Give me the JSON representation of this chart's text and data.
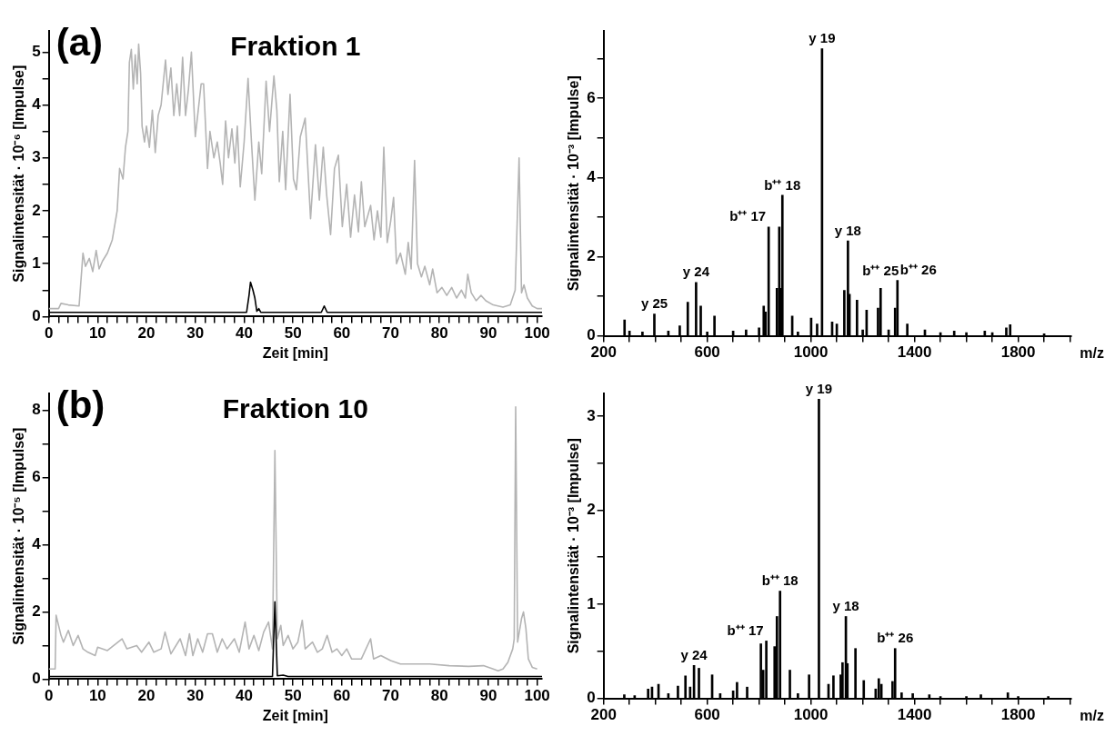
{
  "chart_data": [
    {
      "type": "line",
      "title": "Fraktion 1",
      "annotations": [
        "(a)"
      ],
      "xlabel": "Zeit [min]",
      "ylabel": "Signalintensität · 10⁻⁶ [Impulse]",
      "xlim": [
        0,
        101
      ],
      "ylim": [
        0,
        5.4
      ],
      "xticks": [
        0,
        {
          "value": 2,
          "label": null
        },
        {
          "value": 4,
          "label": null
        },
        {
          "value": 6,
          "label": null
        },
        {
          "value": 8,
          "label": null
        },
        10,
        {
          "value": 12,
          "label": null
        },
        {
          "value": 14,
          "label": null
        },
        {
          "value": 16,
          "label": null
        },
        {
          "value": 18,
          "label": null
        },
        20,
        {
          "value": 22,
          "label": null
        },
        {
          "value": 24,
          "label": null
        },
        {
          "value": 26,
          "label": null
        },
        {
          "value": 28,
          "label": null
        },
        30,
        {
          "value": 32,
          "label": null
        },
        {
          "value": 34,
          "label": null
        },
        {
          "value": 36,
          "label": null
        },
        {
          "value": 38,
          "label": null
        },
        40,
        {
          "value": 42,
          "label": null
        },
        {
          "value": 44,
          "label": null
        },
        {
          "value": 46,
          "label": null
        },
        {
          "value": 48,
          "label": null
        },
        50,
        {
          "value": 52,
          "label": null
        },
        {
          "value": 54,
          "label": null
        },
        {
          "value": 56,
          "label": null
        },
        {
          "value": 58,
          "label": null
        },
        60,
        {
          "value": 62,
          "label": null
        },
        {
          "value": 64,
          "label": null
        },
        {
          "value": 66,
          "label": null
        },
        {
          "value": 68,
          "label": null
        },
        70,
        {
          "value": 72,
          "label": null
        },
        {
          "value": 74,
          "label": null
        },
        {
          "value": 76,
          "label": null
        },
        {
          "value": 78,
          "label": null
        },
        80,
        {
          "value": 82,
          "label": null
        },
        {
          "value": 84,
          "label": null
        },
        {
          "value": 86,
          "label": null
        },
        {
          "value": 88,
          "label": null
        },
        90,
        {
          "value": 92,
          "label": null
        },
        {
          "value": 94,
          "label": null
        },
        {
          "value": 96,
          "label": null
        },
        {
          "value": 98,
          "label": null
        },
        100
      ],
      "yticks": [
        0,
        {
          "value": 0.5,
          "label": null
        },
        1,
        {
          "value": 1.5,
          "label": null
        },
        2,
        {
          "value": 2.5,
          "label": null
        },
        3,
        {
          "value": 3.5,
          "label": null
        },
        4,
        {
          "value": 4.5,
          "label": null
        },
        5
      ],
      "series": [
        {
          "color": "#b4b4b4",
          "x": [
            0,
            2,
            2.5,
            4,
            6.2,
            7,
            7.5,
            8.3,
            9,
            9.7,
            10.3,
            11,
            12,
            13,
            14,
            14.5,
            15.2,
            15.7,
            16.2,
            16.5,
            16.9,
            17.3,
            17.7,
            18.1,
            18.4,
            18.8,
            19.1,
            19.6,
            20,
            20.6,
            21.2,
            21.8,
            22.4,
            23,
            23.9,
            24.4,
            25,
            25.6,
            26.2,
            26.8,
            27.4,
            28,
            28.6,
            29.2,
            30,
            30.6,
            31.2,
            31.7,
            32.5,
            33,
            33.8,
            34.5,
            35.1,
            35.6,
            36.2,
            36.8,
            37.5,
            38.1,
            38.6,
            39.2,
            40,
            40.8,
            41.5,
            42.2,
            43,
            43.6,
            44.5,
            45.2,
            46.1,
            46.7,
            47.2,
            47.9,
            48.5,
            49.4,
            50.1,
            50.7,
            51.5,
            52.5,
            53.6,
            54.6,
            55.4,
            56.2,
            56.9,
            57.7,
            58.5,
            59.3,
            60.1,
            61,
            61.8,
            62.6,
            63.4,
            64,
            64.7,
            65.9,
            66.6,
            67.3,
            68,
            68.6,
            69.3,
            70,
            70.6,
            71.2,
            72,
            73,
            73.6,
            74.2,
            74.9,
            75.5,
            76.3,
            77,
            78,
            78.6,
            79.5,
            80.5,
            81.5,
            82.5,
            83.5,
            84.5,
            85.3,
            85.8,
            86.5,
            87.5,
            88.5,
            89.5,
            91,
            93,
            94.5,
            95.5,
            96.3,
            96.8,
            97.3,
            98,
            99,
            100,
            101
          ],
          "values": [
            0.15,
            0.15,
            0.25,
            0.22,
            0.2,
            1.2,
            0.95,
            1.1,
            0.85,
            1.25,
            0.9,
            1.05,
            1.2,
            1.45,
            2.0,
            2.8,
            2.6,
            3.2,
            3.5,
            4.8,
            5.05,
            4.3,
            4.95,
            4.4,
            5.15,
            4.6,
            3.6,
            3.3,
            3.6,
            3.2,
            3.9,
            3.1,
            3.8,
            4.0,
            4.85,
            4.2,
            4.7,
            3.8,
            4.4,
            3.8,
            4.9,
            3.8,
            4.3,
            5.0,
            3.4,
            3.9,
            4.4,
            4.4,
            2.8,
            3.5,
            3.0,
            3.3,
            2.9,
            2.5,
            3.7,
            3.0,
            3.55,
            2.9,
            3.6,
            2.45,
            3.3,
            4.5,
            3.3,
            2.2,
            3.3,
            2.7,
            4.45,
            3.5,
            4.55,
            3.9,
            2.55,
            3.5,
            2.4,
            4.2,
            2.6,
            2.4,
            3.4,
            3.75,
            1.85,
            3.25,
            2.2,
            3.2,
            2.3,
            1.55,
            2.8,
            3.05,
            1.7,
            2.5,
            1.5,
            2.3,
            1.6,
            2.55,
            1.7,
            2.1,
            1.45,
            2.0,
            1.5,
            3.2,
            1.4,
            1.8,
            2.25,
            1.0,
            1.2,
            0.8,
            1.4,
            0.9,
            2.95,
            1.0,
            0.75,
            0.95,
            0.6,
            0.9,
            0.45,
            0.55,
            0.4,
            0.55,
            0.35,
            0.5,
            0.35,
            0.8,
            0.45,
            0.3,
            0.4,
            0.3,
            0.22,
            0.18,
            0.22,
            0.5,
            3.0,
            0.45,
            0.6,
            0.35,
            0.2,
            0.15,
            0.15
          ]
        },
        {
          "color": "#000000",
          "x": [
            0,
            40.5,
            41,
            41.3,
            41.8,
            42.2,
            42.6,
            43,
            43.4,
            55.8,
            56.4,
            57,
            101
          ],
          "values": [
            0.08,
            0.08,
            0.4,
            0.65,
            0.5,
            0.35,
            0.1,
            0.15,
            0.08,
            0.08,
            0.2,
            0.08,
            0.08
          ]
        }
      ]
    },
    {
      "type": "bar",
      "xlabel": "m/z",
      "ylabel": "Signalintensität · 10⁻³ [Impulse]",
      "xlim": [
        200,
        2005
      ],
      "ylim": [
        0,
        7.7
      ],
      "xticks": [
        200,
        {
          "value": 300,
          "label": null
        },
        {
          "value": 400,
          "label": null
        },
        {
          "value": 500,
          "label": null
        },
        600,
        {
          "value": 700,
          "label": null
        },
        {
          "value": 800,
          "label": null
        },
        {
          "value": 900,
          "label": null
        },
        1000,
        {
          "value": 1100,
          "label": null
        },
        {
          "value": 1200,
          "label": null
        },
        {
          "value": 1300,
          "label": null
        },
        1400,
        {
          "value": 1500,
          "label": null
        },
        {
          "value": 1600,
          "label": null
        },
        {
          "value": 1700,
          "label": null
        },
        1800,
        {
          "value": 1900,
          "label": null
        },
        {
          "value": 2000,
          "label": null
        }
      ],
      "yticks": [
        0,
        {
          "value": 1,
          "label": null
        },
        2,
        {
          "value": 3,
          "label": null
        },
        4,
        {
          "value": 5,
          "label": null
        },
        6,
        {
          "value": 7,
          "label": null
        }
      ],
      "series": [
        {
          "color": "#000000",
          "x": [
            281,
            300,
            350,
            396,
            450,
            494,
            525,
            557,
            575,
            600,
            628,
            700,
            750,
            800,
            818,
            825,
            837,
            869,
            878,
            884,
            890,
            928,
            950,
            1001,
            1024,
            1043,
            1082,
            1100,
            1129,
            1143,
            1149,
            1178,
            1200,
            1215,
            1259,
            1269,
            1300,
            1325,
            1334,
            1372,
            1440,
            1500,
            1553,
            1600,
            1671,
            1700,
            1754,
            1769,
            1900
          ],
          "values": [
            0.4,
            0.12,
            0.1,
            0.55,
            0.12,
            0.25,
            0.85,
            1.35,
            0.75,
            0.1,
            0.5,
            0.12,
            0.15,
            0.2,
            0.75,
            0.6,
            2.75,
            1.2,
            2.75,
            1.2,
            3.55,
            0.5,
            0.1,
            0.45,
            0.3,
            7.25,
            0.35,
            0.3,
            1.15,
            2.4,
            1.05,
            0.9,
            0.15,
            0.65,
            0.7,
            1.2,
            0.15,
            0.7,
            1.4,
            0.3,
            0.15,
            0.08,
            0.12,
            0.08,
            0.12,
            0.08,
            0.2,
            0.28,
            0.05
          ]
        }
      ],
      "annotations": [
        {
          "text": "y 25",
          "x": 396,
          "y": 0.55
        },
        {
          "text": "y 24",
          "x": 557,
          "y": 1.35
        },
        {
          "text": "b⁺⁺ 17",
          "x": 837,
          "y": 2.75
        },
        {
          "text": "b⁺⁺ 18",
          "x": 890,
          "y": 3.55
        },
        {
          "text": "y 19",
          "x": 1043,
          "y": 7.25
        },
        {
          "text": "y 18",
          "x": 1143,
          "y": 2.4
        },
        {
          "text": "b⁺⁺ 25",
          "x": 1269,
          "y": 1.2
        },
        {
          "text": "b⁺⁺ 26",
          "x": 1334,
          "y": 1.4
        }
      ]
    },
    {
      "type": "line",
      "title": "Fraktion 10",
      "annotations": [
        "(b)"
      ],
      "xlabel": "Zeit [min]",
      "ylabel": "Signalintensität · 10⁻⁵ [Impulse]",
      "xlim": [
        0,
        101
      ],
      "ylim": [
        0,
        8.5
      ],
      "xticks": [
        0,
        {
          "value": 2,
          "label": null
        },
        {
          "value": 4,
          "label": null
        },
        {
          "value": 6,
          "label": null
        },
        {
          "value": 8,
          "label": null
        },
        10,
        {
          "value": 12,
          "label": null
        },
        {
          "value": 14,
          "label": null
        },
        {
          "value": 16,
          "label": null
        },
        {
          "value": 18,
          "label": null
        },
        20,
        {
          "value": 22,
          "label": null
        },
        {
          "value": 24,
          "label": null
        },
        {
          "value": 26,
          "label": null
        },
        {
          "value": 28,
          "label": null
        },
        30,
        {
          "value": 32,
          "label": null
        },
        {
          "value": 34,
          "label": null
        },
        {
          "value": 36,
          "label": null
        },
        {
          "value": 38,
          "label": null
        },
        40,
        {
          "value": 42,
          "label": null
        },
        {
          "value": 44,
          "label": null
        },
        {
          "value": 46,
          "label": null
        },
        {
          "value": 48,
          "label": null
        },
        50,
        {
          "value": 52,
          "label": null
        },
        {
          "value": 54,
          "label": null
        },
        {
          "value": 56,
          "label": null
        },
        {
          "value": 58,
          "label": null
        },
        60,
        {
          "value": 62,
          "label": null
        },
        {
          "value": 64,
          "label": null
        },
        {
          "value": 66,
          "label": null
        },
        {
          "value": 68,
          "label": null
        },
        70,
        {
          "value": 72,
          "label": null
        },
        {
          "value": 74,
          "label": null
        },
        {
          "value": 76,
          "label": null
        },
        {
          "value": 78,
          "label": null
        },
        80,
        {
          "value": 82,
          "label": null
        },
        {
          "value": 84,
          "label": null
        },
        {
          "value": 86,
          "label": null
        },
        {
          "value": 88,
          "label": null
        },
        90,
        {
          "value": 92,
          "label": null
        },
        {
          "value": 94,
          "label": null
        },
        {
          "value": 96,
          "label": null
        },
        {
          "value": 98,
          "label": null
        },
        100
      ],
      "yticks": [
        0,
        {
          "value": 1,
          "label": null
        },
        2,
        {
          "value": 3,
          "label": null
        },
        4,
        {
          "value": 5,
          "label": null
        },
        6,
        {
          "value": 7,
          "label": null
        },
        8
      ],
      "series": [
        {
          "color": "#b4b4b4",
          "x": [
            0,
            1.3,
            1.5,
            2.5,
            3,
            4,
            5,
            6,
            7,
            8,
            9.5,
            10,
            12,
            15,
            16,
            18,
            19,
            20.5,
            21.5,
            23,
            23.8,
            25,
            26.9,
            28,
            28.8,
            29.5,
            30.5,
            31.5,
            32.5,
            33.5,
            34.5,
            35.5,
            36.5,
            38,
            39,
            40.2,
            41,
            42,
            43,
            44,
            45,
            45.8,
            46.3,
            46.8,
            47.5,
            48,
            49,
            50,
            51,
            51.9,
            52.5,
            54,
            55,
            56,
            57,
            58,
            59,
            60,
            61,
            62,
            64,
            65.9,
            66.5,
            68,
            70,
            72,
            75,
            78,
            82,
            86,
            89,
            91,
            92,
            93,
            94,
            95,
            95.3,
            95.6,
            96,
            96.8,
            97.2,
            97.7,
            98.2,
            99,
            100
          ],
          "values": [
            0.3,
            0.3,
            1.9,
            1.3,
            1.1,
            1.45,
            1.0,
            1.3,
            0.9,
            0.8,
            0.7,
            0.95,
            0.85,
            1.2,
            0.9,
            1.0,
            0.8,
            1.1,
            0.8,
            0.9,
            1.4,
            0.75,
            1.2,
            0.7,
            1.35,
            0.7,
            1.2,
            0.8,
            1.35,
            1.35,
            0.8,
            1.2,
            0.9,
            1.2,
            0.8,
            1.7,
            0.9,
            1.3,
            0.85,
            1.4,
            1.7,
            0.9,
            6.8,
            1.2,
            1.6,
            1.0,
            1.3,
            0.9,
            1.1,
            1.75,
            0.9,
            1.1,
            0.8,
            0.9,
            1.3,
            0.8,
            0.9,
            0.7,
            0.9,
            0.6,
            0.6,
            1.2,
            0.6,
            0.7,
            0.55,
            0.45,
            0.45,
            0.45,
            0.4,
            0.38,
            0.4,
            0.3,
            0.25,
            0.3,
            0.5,
            0.9,
            1.2,
            8.1,
            1.1,
            1.8,
            2.0,
            1.5,
            0.6,
            0.35,
            0.3
          ]
        },
        {
          "color": "#000000",
          "x": [
            0,
            45.8,
            46.3,
            46.8,
            48,
            48.5,
            49,
            101
          ],
          "values": [
            0.08,
            0.08,
            2.3,
            0.1,
            0.12,
            0.1,
            0.08,
            0.08
          ]
        }
      ]
    },
    {
      "type": "bar",
      "xlabel": "m/z",
      "ylabel": "Signalintensität · 10⁻³ [Impulse]",
      "xlim": [
        200,
        2005
      ],
      "ylim": [
        0,
        3.24
      ],
      "xticks": [
        200,
        {
          "value": 300,
          "label": null
        },
        {
          "value": 400,
          "label": null
        },
        {
          "value": 500,
          "label": null
        },
        600,
        {
          "value": 700,
          "label": null
        },
        {
          "value": 800,
          "label": null
        },
        {
          "value": 900,
          "label": null
        },
        1000,
        {
          "value": 1100,
          "label": null
        },
        {
          "value": 1200,
          "label": null
        },
        {
          "value": 1300,
          "label": null
        },
        1400,
        {
          "value": 1500,
          "label": null
        },
        {
          "value": 1600,
          "label": null
        },
        {
          "value": 1700,
          "label": null
        },
        1800,
        {
          "value": 1900,
          "label": null
        },
        {
          "value": 2000,
          "label": null
        }
      ],
      "yticks": [
        0,
        {
          "value": 0.5,
          "label": null
        },
        1,
        {
          "value": 1.5,
          "label": null
        },
        2,
        {
          "value": 2.5,
          "label": null
        },
        3
      ],
      "series": [
        {
          "color": "#000000",
          "x": [
            280,
            320,
            372,
            387,
            412,
            450,
            487,
            516,
            534,
            549,
            568,
            619,
            650,
            700,
            715,
            754,
            807,
            816,
            828,
            860,
            869,
            881,
            919,
            950,
            993,
            1031,
            1068,
            1087,
            1115,
            1122,
            1135,
            1141,
            1172,
            1204,
            1250,
            1262,
            1272,
            1315,
            1325,
            1350,
            1393,
            1457,
            1500,
            1600,
            1656,
            1760,
            1800,
            1916
          ],
          "values": [
            0.04,
            0.03,
            0.1,
            0.12,
            0.15,
            0.05,
            0.13,
            0.24,
            0.12,
            0.35,
            0.32,
            0.25,
            0.05,
            0.08,
            0.17,
            0.12,
            0.58,
            0.3,
            0.61,
            0.55,
            0.87,
            1.14,
            0.3,
            0.05,
            0.25,
            3.18,
            0.15,
            0.24,
            0.25,
            0.38,
            0.87,
            0.37,
            0.53,
            0.19,
            0.1,
            0.21,
            0.15,
            0.18,
            0.53,
            0.06,
            0.05,
            0.04,
            0.02,
            0.02,
            0.04,
            0.06,
            0.02,
            0.02
          ]
        }
      ],
      "annotations": [
        {
          "text": "y 24",
          "x": 549,
          "y": 0.35
        },
        {
          "text": "b⁺⁺ 17",
          "x": 828,
          "y": 0.61
        },
        {
          "text": "b⁺⁺ 18",
          "x": 881,
          "y": 1.14
        },
        {
          "text": "y 19",
          "x": 1031,
          "y": 3.18
        },
        {
          "text": "y 18",
          "x": 1135,
          "y": 0.87
        },
        {
          "text": "b⁺⁺ 26",
          "x": 1325,
          "y": 0.53
        }
      ]
    }
  ]
}
